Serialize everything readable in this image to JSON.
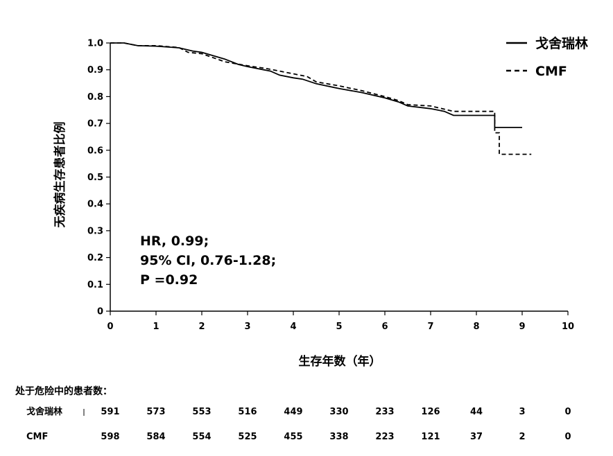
{
  "chart_data": {
    "type": "line",
    "title": "",
    "xlabel": "生存年数（年）",
    "ylabel": "无疾病生存患者比例",
    "xlim": [
      0,
      10
    ],
    "ylim": [
      0,
      1.0
    ],
    "x_ticks": [
      "0",
      "1",
      "2",
      "3",
      "4",
      "5",
      "6",
      "7",
      "8",
      "9",
      "10"
    ],
    "y_ticks": [
      "0",
      "0.1",
      "0.2",
      "0.3",
      "0.4",
      "0.5",
      "0.6",
      "0.7",
      "0.8",
      "0.9",
      "1.0"
    ],
    "grid": false,
    "legend_position": "top-right",
    "series": [
      {
        "name": "戈舍瑞林",
        "style": "solid",
        "points": [
          [
            0,
            1.0
          ],
          [
            0.3,
            1.0
          ],
          [
            0.6,
            0.99
          ],
          [
            1.0,
            0.988
          ],
          [
            1.5,
            0.982
          ],
          [
            1.8,
            0.97
          ],
          [
            2.0,
            0.965
          ],
          [
            2.5,
            0.94
          ],
          [
            2.8,
            0.92
          ],
          [
            3.0,
            0.912
          ],
          [
            3.5,
            0.895
          ],
          [
            3.7,
            0.88
          ],
          [
            4.0,
            0.87
          ],
          [
            4.2,
            0.865
          ],
          [
            4.5,
            0.848
          ],
          [
            5.0,
            0.83
          ],
          [
            5.5,
            0.815
          ],
          [
            6.0,
            0.795
          ],
          [
            6.3,
            0.78
          ],
          [
            6.5,
            0.765
          ],
          [
            7.0,
            0.755
          ],
          [
            7.3,
            0.745
          ],
          [
            7.5,
            0.73
          ],
          [
            8.0,
            0.73
          ],
          [
            8.4,
            0.73
          ],
          [
            8.4,
            0.685
          ],
          [
            9.0,
            0.685
          ]
        ]
      },
      {
        "name": "CMF",
        "style": "dashed",
        "points": [
          [
            0,
            1.0
          ],
          [
            0.3,
            1.0
          ],
          [
            0.6,
            0.99
          ],
          [
            1.0,
            0.99
          ],
          [
            1.5,
            0.983
          ],
          [
            1.7,
            0.965
          ],
          [
            2.0,
            0.96
          ],
          [
            2.5,
            0.93
          ],
          [
            3.0,
            0.915
          ],
          [
            3.4,
            0.905
          ],
          [
            3.7,
            0.895
          ],
          [
            4.0,
            0.885
          ],
          [
            4.3,
            0.875
          ],
          [
            4.5,
            0.855
          ],
          [
            5.0,
            0.84
          ],
          [
            5.5,
            0.822
          ],
          [
            6.0,
            0.8
          ],
          [
            6.3,
            0.785
          ],
          [
            6.5,
            0.77
          ],
          [
            7.0,
            0.765
          ],
          [
            7.5,
            0.745
          ],
          [
            8.0,
            0.745
          ],
          [
            8.4,
            0.745
          ],
          [
            8.4,
            0.665
          ],
          [
            8.5,
            0.665
          ],
          [
            8.5,
            0.585
          ],
          [
            9.2,
            0.585
          ]
        ]
      }
    ],
    "annotations": [
      "HR, 0.99;",
      "95% CI, 0.76-1.28;",
      "P =0.92"
    ],
    "risk_table": {
      "title": "处于危险中的患者数：",
      "rows": [
        {
          "label": "戈舍瑞林",
          "values": [
            "591",
            "573",
            "553",
            "516",
            "449",
            "330",
            "233",
            "126",
            "44",
            "3",
            "0"
          ]
        },
        {
          "label": "CMF",
          "values": [
            "598",
            "584",
            "554",
            "525",
            "455",
            "338",
            "223",
            "121",
            "37",
            "2",
            "0"
          ]
        }
      ]
    }
  }
}
